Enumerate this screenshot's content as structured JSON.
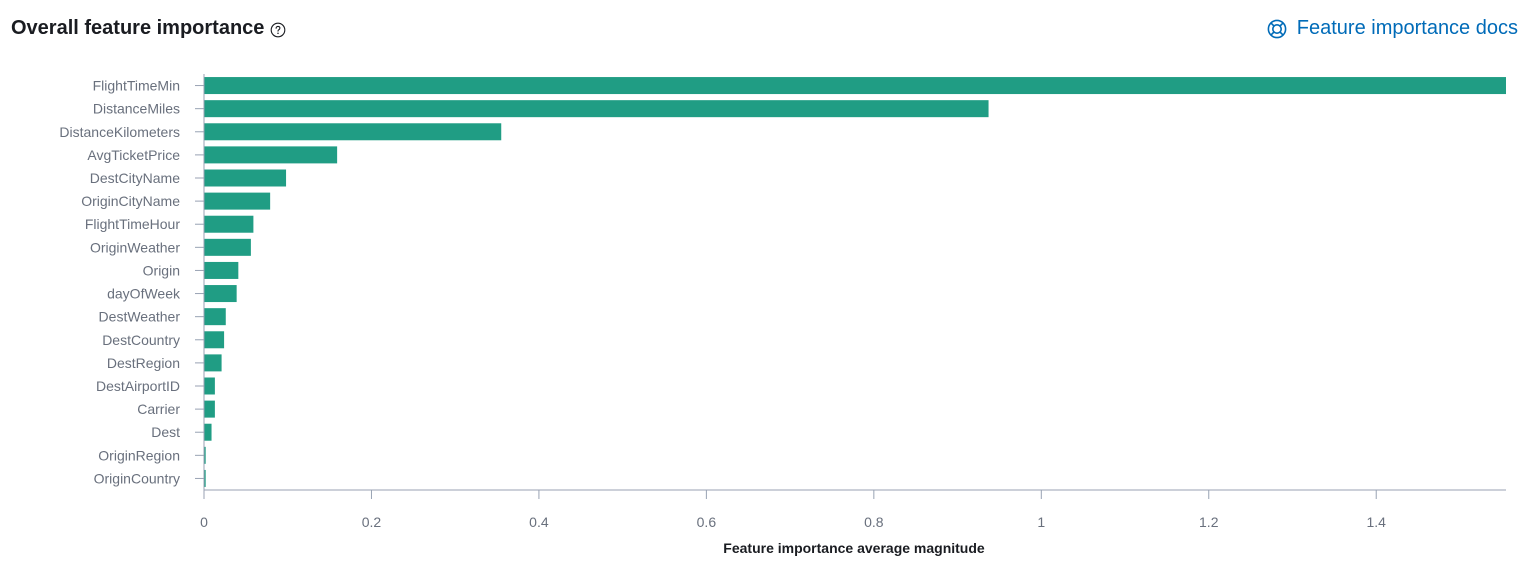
{
  "header": {
    "title": "Overall feature importance",
    "help_icon": "question-circle-icon",
    "docs_link_label": "Feature importance docs",
    "docs_icon": "lifebuoy-icon"
  },
  "colors": {
    "bar": "#209d84",
    "axis": "#98a2b3",
    "tick_text": "#69707d",
    "link": "#006bb8",
    "title": "#1a1c21"
  },
  "chart_data": {
    "type": "bar",
    "orientation": "horizontal",
    "categories": [
      "FlightTimeMin",
      "DistanceMiles",
      "DistanceKilometers",
      "AvgTicketPrice",
      "DestCityName",
      "OriginCityName",
      "FlightTimeHour",
      "OriginWeather",
      "Origin",
      "dayOfWeek",
      "DestWeather",
      "DestCountry",
      "DestRegion",
      "DestAirportID",
      "Carrier",
      "Dest",
      "OriginRegion",
      "OriginCountry"
    ],
    "values": [
      1.555,
      0.937,
      0.355,
      0.159,
      0.098,
      0.079,
      0.059,
      0.056,
      0.041,
      0.039,
      0.026,
      0.024,
      0.021,
      0.013,
      0.013,
      0.009,
      0.002,
      0.002
    ],
    "xlabel": "Feature importance average magnitude",
    "ylabel": "",
    "xlim": [
      0,
      1.555
    ],
    "xticks": [
      0,
      0.2,
      0.4,
      0.6,
      0.8,
      1,
      1.2,
      1.4
    ],
    "xtick_labels": [
      "0",
      "0.2",
      "0.4",
      "0.6",
      "0.8",
      "1",
      "1.2",
      "1.4"
    ],
    "grid": false,
    "legend": "none"
  }
}
